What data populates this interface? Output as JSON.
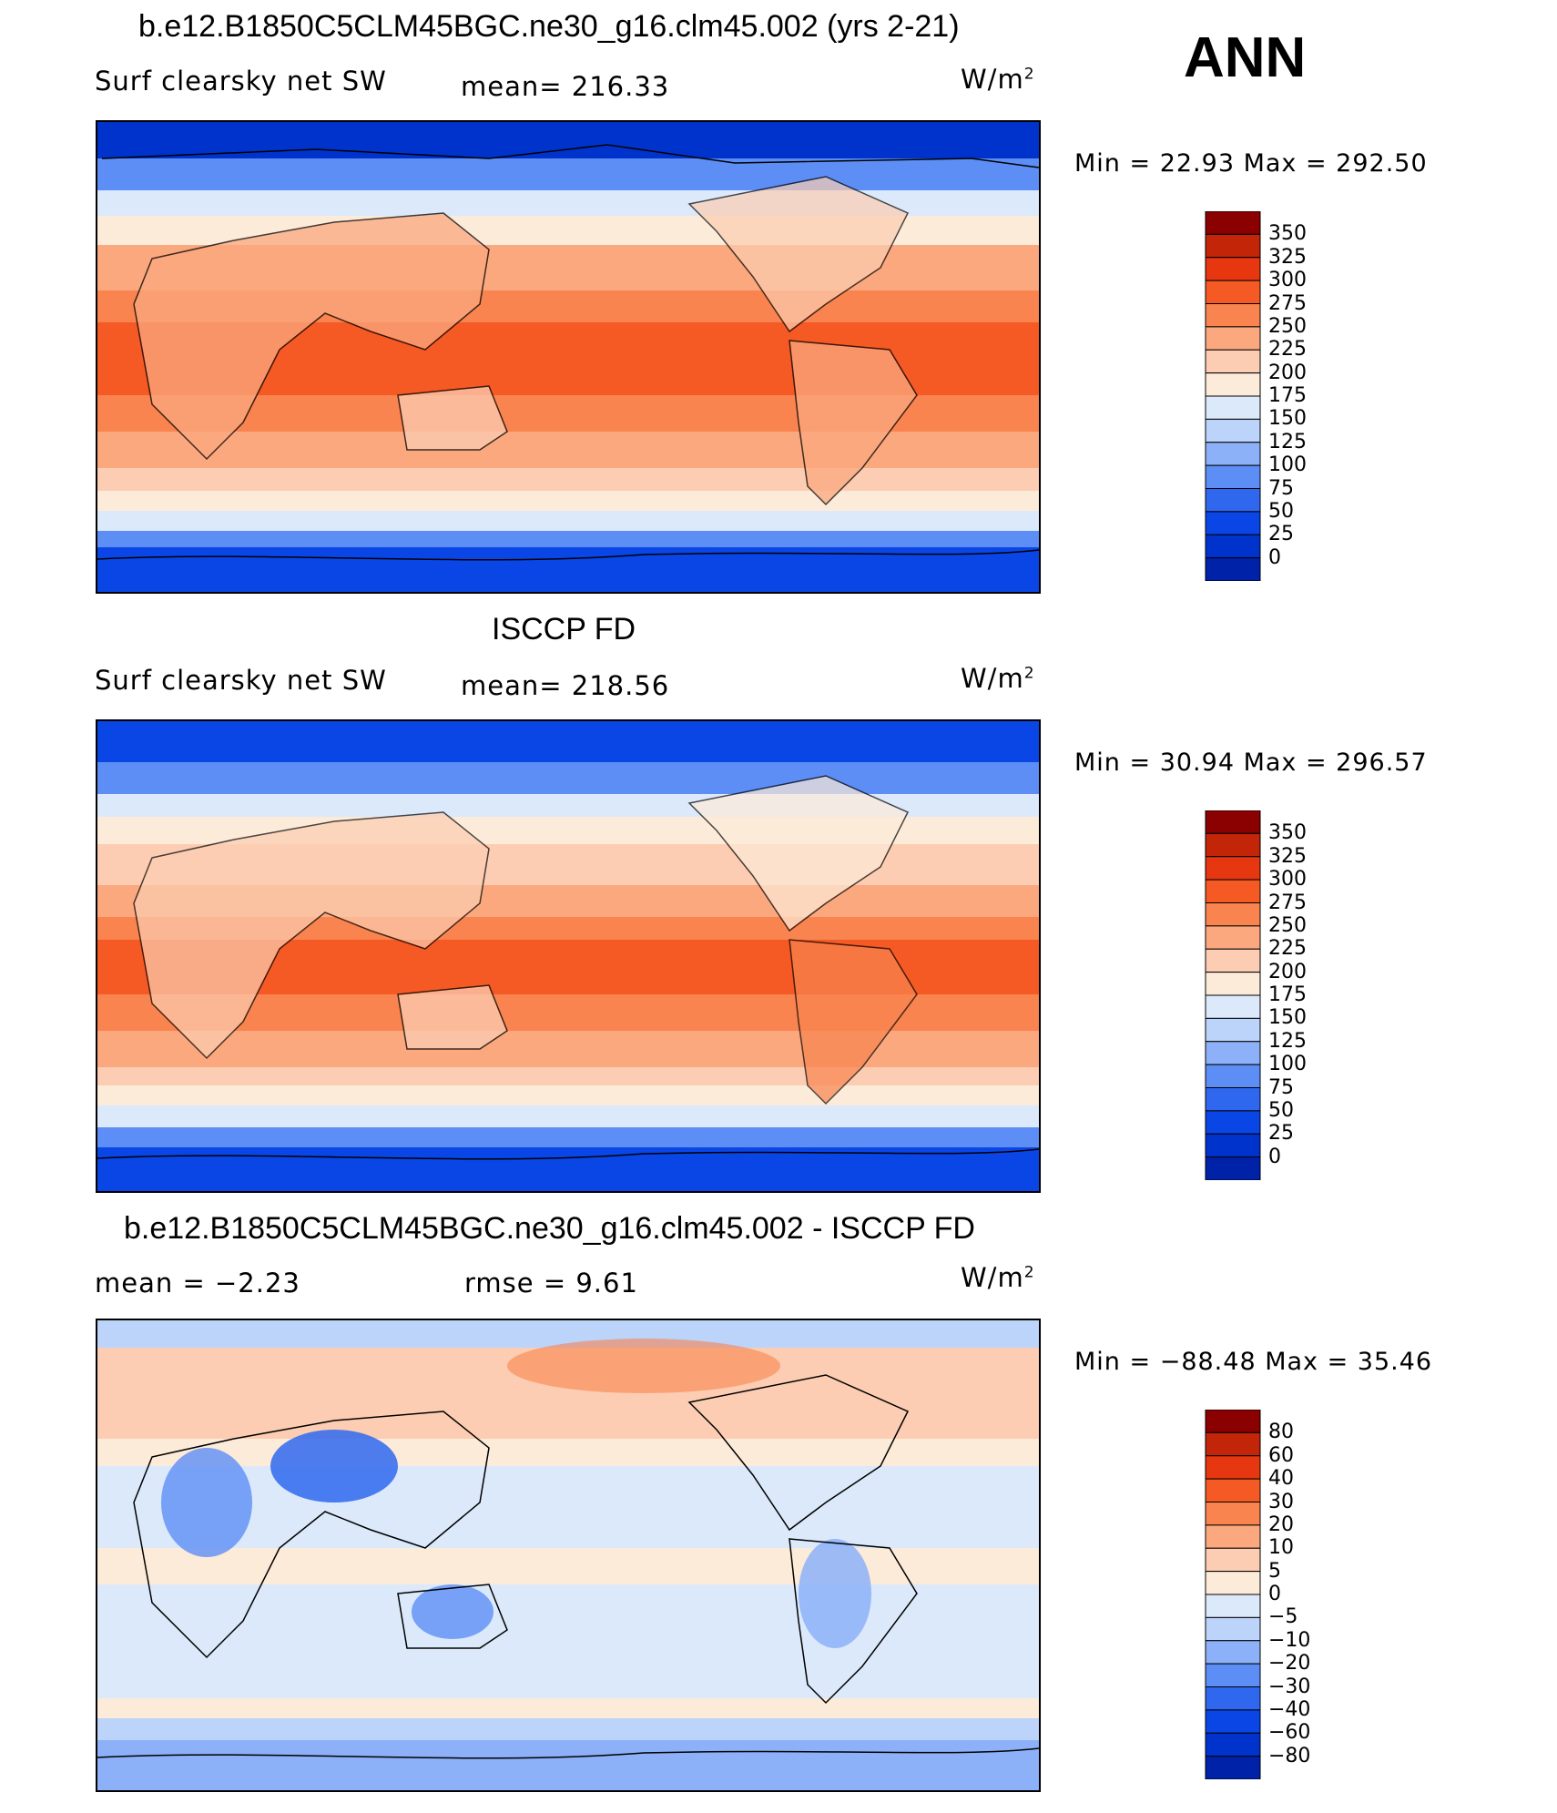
{
  "season": "ANN",
  "colors": {
    "abs_scale": [
      "#00008b",
      "#0022a8",
      "#0033cc",
      "#0a46e6",
      "#2f68ee",
      "#5c8ef5",
      "#8cb1f8",
      "#bcd3fa",
      "#dbe9fb",
      "#fdebd9",
      "#fccdb2",
      "#fba87f",
      "#f9844f",
      "#f55a24",
      "#e63710",
      "#c22508",
      "#8b0000"
    ],
    "diff_scale": [
      "#00008b",
      "#0022a8",
      "#0033cc",
      "#0a46e6",
      "#2f68ee",
      "#5c8ef5",
      "#8cb1f8",
      "#bcd3fa",
      "#dbe9fb",
      "#fdebd9",
      "#fccdb2",
      "#fba87f",
      "#f9844f",
      "#f55a24",
      "#e63710",
      "#c22508",
      "#8b0000"
    ]
  },
  "panels": [
    {
      "title": "b.e12.B1850C5CLM45BGC.ne30_g16.clm45.002 (yrs 2-21)",
      "left_label": "Surf clearsky net SW",
      "stat_label": "mean= 216.33",
      "units": "W/m",
      "units_sup": "2",
      "minmax": "Min =   22.93 Max = 292.50",
      "legend_ticks": [
        "350",
        "325",
        "300",
        "275",
        "250",
        "225",
        "200",
        "175",
        "150",
        "125",
        "100",
        "75",
        "50",
        "25",
        "0"
      ]
    },
    {
      "title": "ISCCP FD",
      "left_label": "Surf clearsky net SW",
      "stat_label": "mean= 218.56",
      "units": "W/m",
      "units_sup": "2",
      "minmax": "Min =   30.94 Max = 296.57",
      "legend_ticks": [
        "350",
        "325",
        "300",
        "275",
        "250",
        "225",
        "200",
        "175",
        "150",
        "125",
        "100",
        "75",
        "50",
        "25",
        "0"
      ]
    },
    {
      "title": "b.e12.B1850C5CLM45BGC.ne30_g16.clm45.002 - ISCCP FD",
      "left_label": "mean =   −2.23",
      "stat_label": "rmse =    9.61",
      "units": "W/m",
      "units_sup": "2",
      "minmax": "Min = −88.48 Max =   35.46",
      "legend_ticks": [
        "80",
        "60",
        "40",
        "30",
        "20",
        "10",
        "5",
        "0",
        "−5",
        "−10",
        "−20",
        "−30",
        "−40",
        "−60",
        "−80"
      ]
    }
  ]
}
